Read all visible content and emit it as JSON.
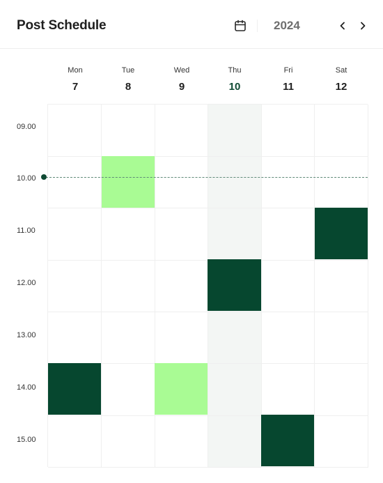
{
  "header": {
    "title": "Post Schedule",
    "calendar_icon": "calendar-icon",
    "year": "2024",
    "prev_icon": "chevron-left-icon",
    "next_icon": "chevron-right-icon"
  },
  "days": [
    {
      "name": "Mon",
      "num": "7"
    },
    {
      "name": "Tue",
      "num": "8"
    },
    {
      "name": "Wed",
      "num": "9"
    },
    {
      "name": "Thu",
      "num": "10",
      "today": true
    },
    {
      "name": "Fri",
      "num": "11"
    },
    {
      "name": "Sat",
      "num": "12"
    }
  ],
  "times": [
    "09.00",
    "10.00",
    "11.00",
    "12.00",
    "13.00",
    "14.00",
    "15.00"
  ],
  "current_time": "10.00",
  "posts": [
    {
      "day": "Tue",
      "time": "10.00",
      "status": "draft"
    },
    {
      "day": "Sat",
      "time": "11.00",
      "status": "scheduled"
    },
    {
      "day": "Thu",
      "time": "12.00",
      "status": "scheduled"
    },
    {
      "day": "Mon",
      "time": "14.00",
      "status": "scheduled"
    },
    {
      "day": "Wed",
      "time": "14.00",
      "status": "draft"
    },
    {
      "day": "Fri",
      "time": "15.00",
      "status": "scheduled"
    }
  ],
  "colors": {
    "scheduled": "#06472f",
    "draft": "#a9fb94",
    "today_column": "#f3f6f4",
    "accent": "#0f4a33"
  }
}
